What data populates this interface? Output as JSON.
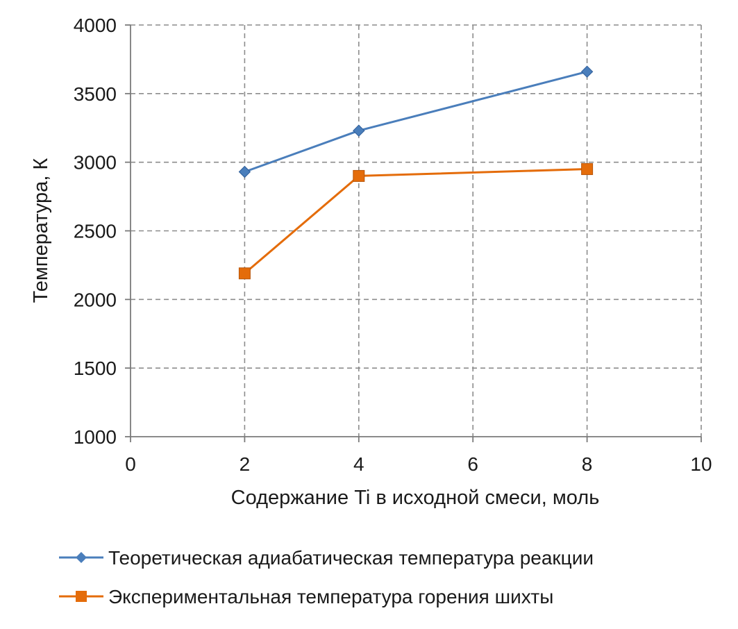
{
  "chart_data": {
    "type": "line",
    "xlabel": "Содержание Ti в исходной смеси, моль",
    "ylabel": "Температура, К",
    "xlim": [
      0,
      10
    ],
    "ylim": [
      1000,
      4000
    ],
    "xticks": [
      0,
      2,
      4,
      6,
      8,
      10
    ],
    "yticks": [
      1000,
      1500,
      2000,
      2500,
      3000,
      3500,
      4000
    ],
    "grid": true,
    "legend_position": "bottom",
    "series": [
      {
        "name": "Теоретическая адиабатическая температура реакции",
        "color": "#4a7ebb",
        "marker": "diamond",
        "x": [
          2,
          4,
          8
        ],
        "y": [
          2930,
          3230,
          3660
        ]
      },
      {
        "name": "Экспериментальная температура горения шихты",
        "color": "#e46c0a",
        "marker": "square",
        "x": [
          2,
          4,
          8
        ],
        "y": [
          2190,
          2900,
          2950
        ]
      }
    ]
  }
}
